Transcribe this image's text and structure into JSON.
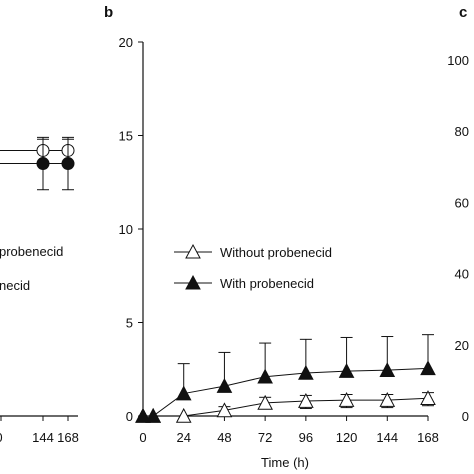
{
  "panels": {
    "a": {
      "right_x_ticks": [
        "0",
        "144",
        "168"
      ],
      "legend_fragments": [
        "probenecid",
        "necid"
      ],
      "series": [
        {
          "marker": "open-circle",
          "x": [
            144,
            168
          ],
          "y": [
            71,
            71
          ],
          "err": [
            3,
            3
          ]
        },
        {
          "marker": "filled-circle",
          "x": [
            144,
            168
          ],
          "y": [
            67.5,
            67.5
          ],
          "err": [
            7,
            7
          ]
        }
      ]
    },
    "b": {
      "letter": "b",
      "xlabel": "Time (h)",
      "x_ticks": [
        "0",
        "24",
        "48",
        "72",
        "96",
        "120",
        "144",
        "168"
      ],
      "y_ticks": [
        "0",
        "5",
        "10",
        "15",
        "20"
      ]
    },
    "c": {
      "letter": "c",
      "y_ticks": [
        "0",
        "20",
        "40",
        "60",
        "80",
        "100"
      ]
    }
  },
  "chart_data": [
    {
      "type": "line",
      "panel": "b",
      "xlabel": "Time (h)",
      "ylabel": "",
      "xlim": [
        0,
        168
      ],
      "ylim": [
        0,
        20
      ],
      "x": [
        0,
        6,
        24,
        48,
        72,
        96,
        120,
        144,
        168
      ],
      "legend_position": "middle-left",
      "series": [
        {
          "name": "Without probenecid",
          "marker": "open-triangle",
          "values": [
            0,
            0,
            0,
            0.3,
            0.7,
            0.8,
            0.85,
            0.85,
            0.95
          ],
          "err_upper": [
            0,
            0,
            0,
            0.2,
            0.3,
            0.3,
            0.3,
            0.3,
            0.3
          ],
          "err_lower": [
            0,
            0,
            0,
            0.2,
            0.3,
            0.4,
            0.4,
            0.4,
            0.4
          ]
        },
        {
          "name": "With probenecid",
          "marker": "filled-triangle",
          "values": [
            0,
            0,
            1.2,
            1.6,
            2.1,
            2.3,
            2.4,
            2.45,
            2.55
          ],
          "err_upper": [
            0,
            0,
            1.6,
            1.8,
            1.8,
            1.8,
            1.8,
            1.8,
            1.8
          ]
        }
      ]
    }
  ]
}
